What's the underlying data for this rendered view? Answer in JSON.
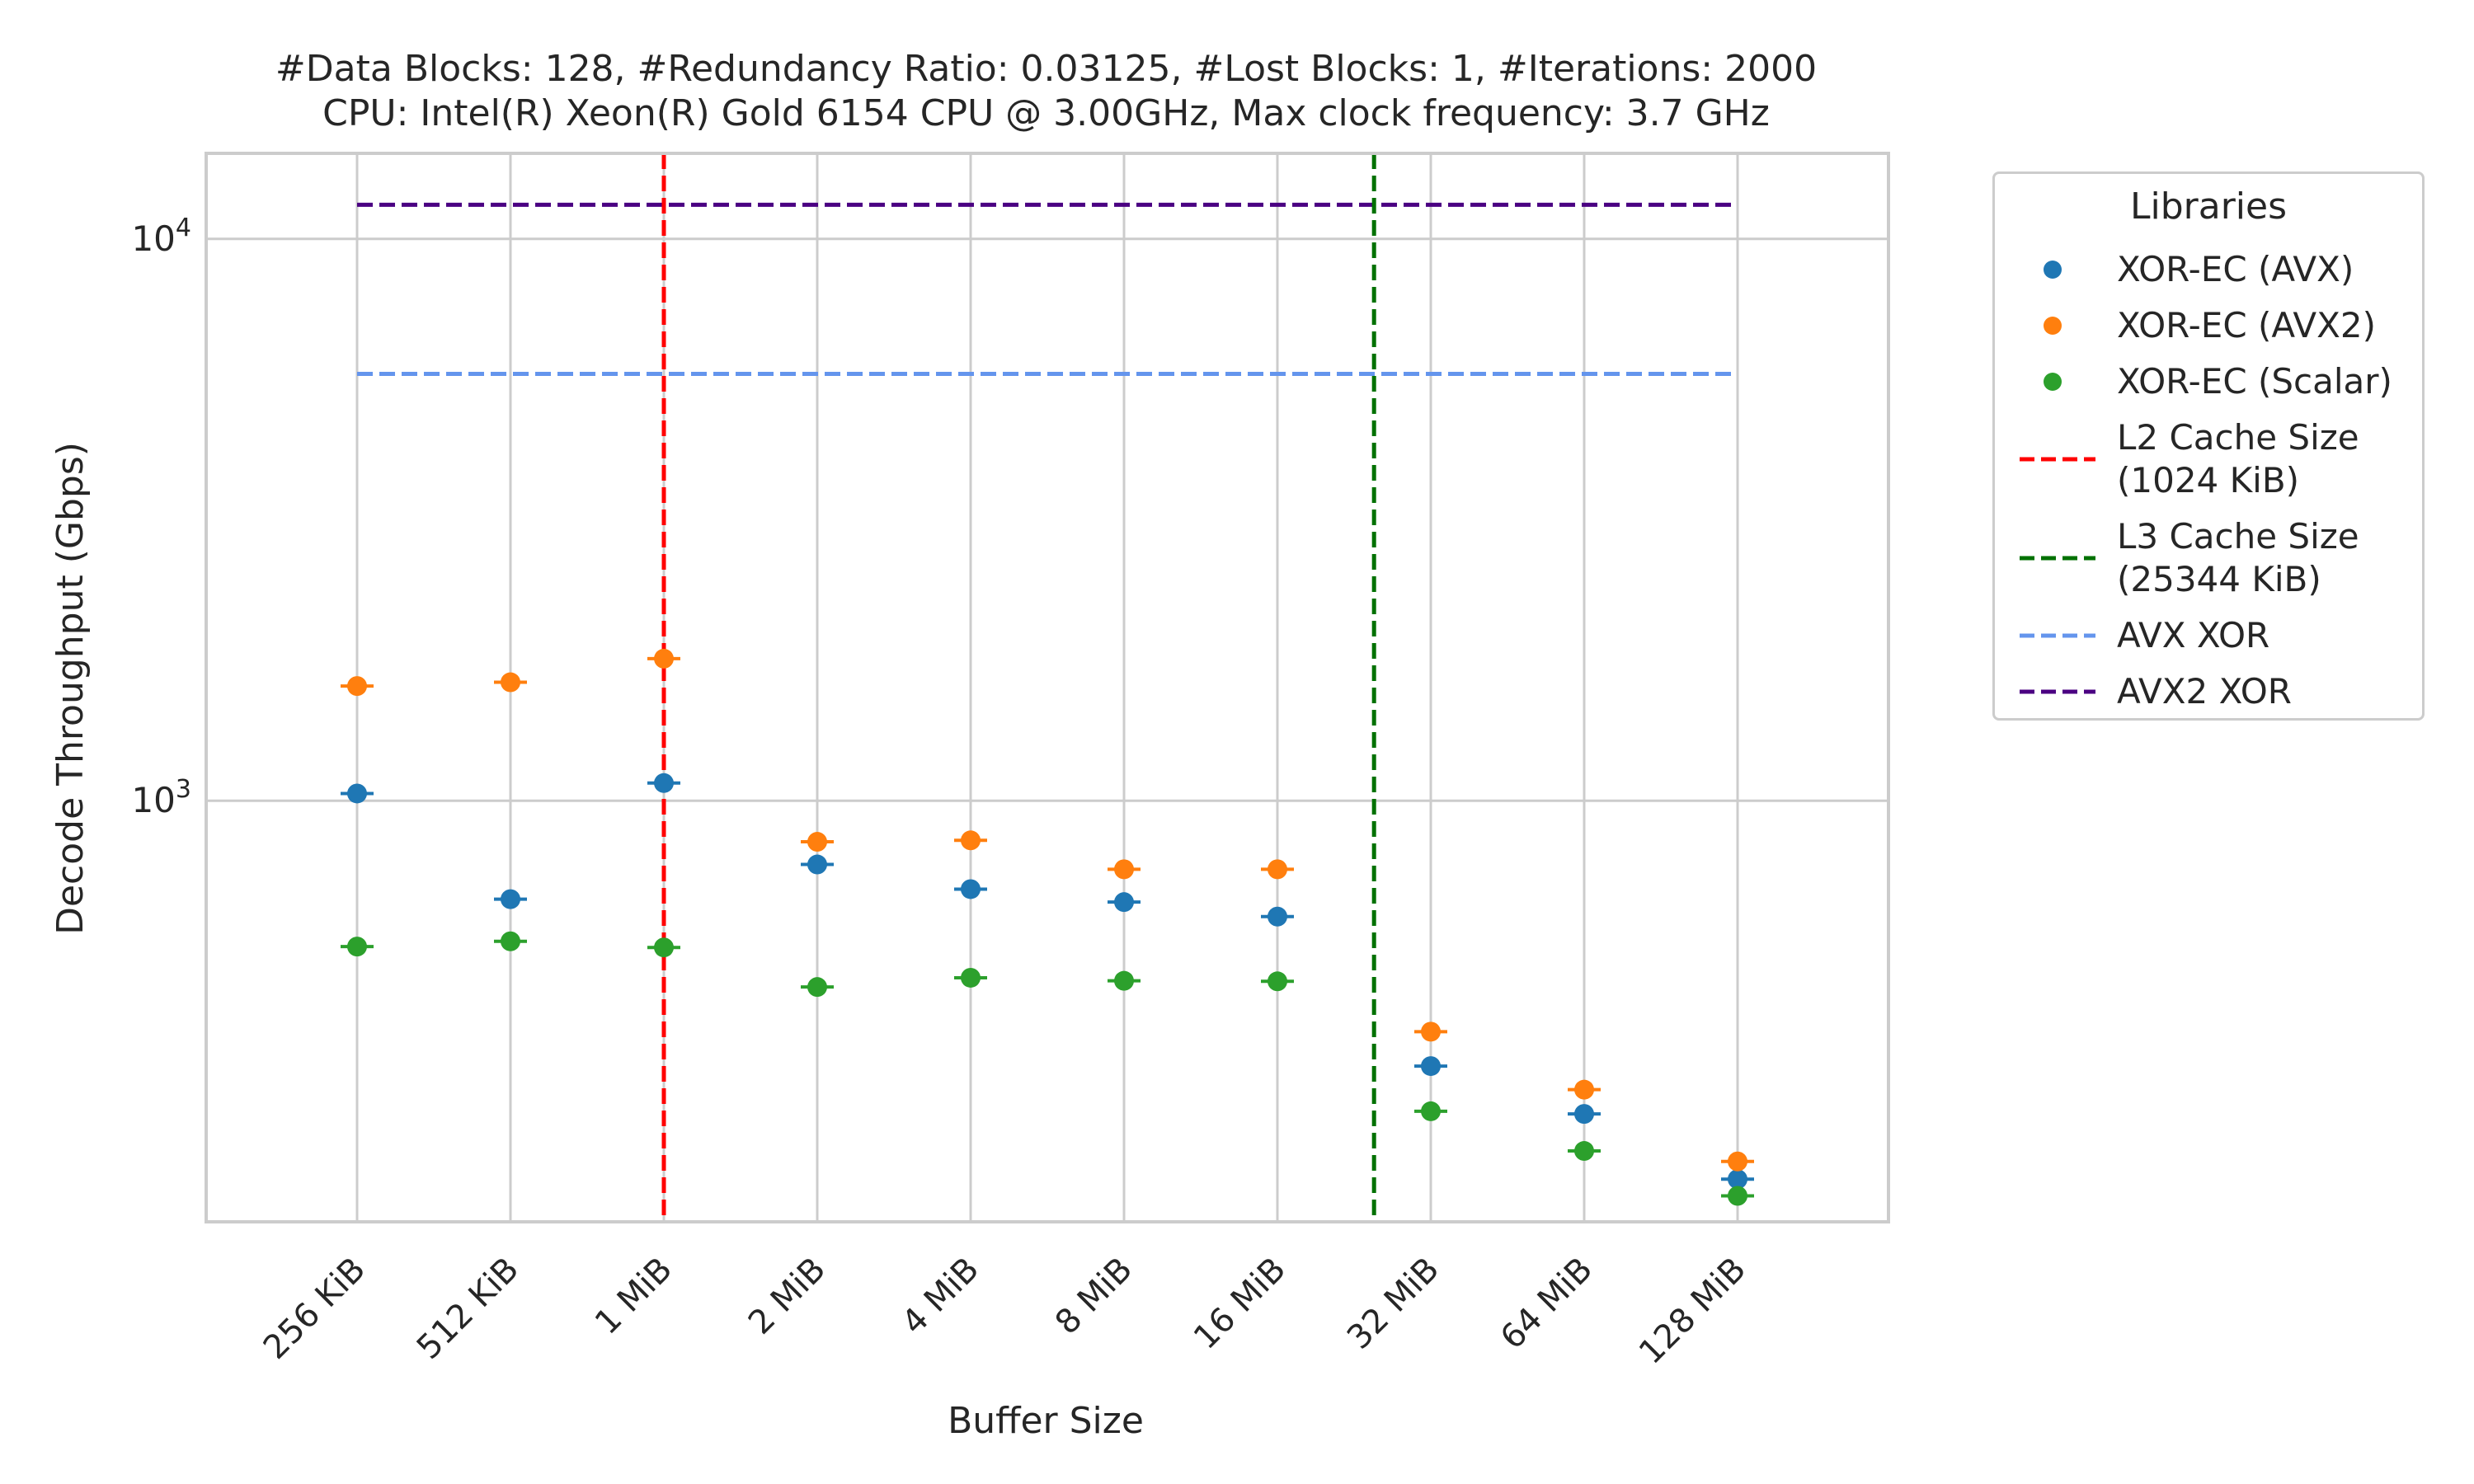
{
  "title_lines": [
    "#Data Blocks: 128, #Redundancy Ratio: 0.03125, #Lost Blocks: 1, #Iterations: 2000",
    "CPU: Intel(R) Xeon(R) Gold 6154 CPU @ 3.00GHz, Max clock frequency: 3.7 GHz"
  ],
  "chart_data": {
    "type": "scatter",
    "xlabel": "Buffer Size",
    "ylabel": "Decode Throughput (Gbps)",
    "categories": [
      "256 KiB",
      "512 KiB",
      "1 MiB",
      "2 MiB",
      "4 MiB",
      "8 MiB",
      "16 MiB",
      "32 MiB",
      "64 MiB",
      "128 MiB"
    ],
    "y_scale": "log",
    "ylim": [
      178,
      14200
    ],
    "y_ticks": [
      {
        "value": 1000,
        "base": "10",
        "exp": "3"
      },
      {
        "value": 10000,
        "base": "10",
        "exp": "4"
      }
    ],
    "grid": true,
    "series": [
      {
        "name": "XOR-EC (AVX)",
        "color": "#1f77b4",
        "values": [
          1030,
          668,
          1075,
          770,
          696,
          660,
          622,
          337,
          277,
          212
        ]
      },
      {
        "name": "XOR-EC (AVX2)",
        "color": "#ff7f0e",
        "values": [
          1600,
          1625,
          1790,
          845,
          850,
          755,
          755,
          388,
          306,
          228
        ]
      },
      {
        "name": "XOR-EC (Scalar)",
        "color": "#2ca02c",
        "values": [
          550,
          562,
          548,
          466,
          484,
          478,
          477,
          280,
          238,
          198
        ]
      }
    ],
    "hlines": [
      {
        "name": "AVX XOR",
        "color": "#6495ed",
        "value": 5750
      },
      {
        "name": "AVX2 XOR",
        "color": "#4b0082",
        "value": 11500
      }
    ],
    "vlines": [
      {
        "name": "L2 Cache Size\n(1024 KiB)",
        "color": "#ff0000",
        "position": 2
      },
      {
        "name": "L3 Cache Size\n(25344 KiB)",
        "color": "#007100",
        "position": 6.63
      }
    ],
    "legend": {
      "title": "Libraries",
      "placement": "outside-right",
      "entries": [
        {
          "label": "XOR-EC (AVX)",
          "kind": "point",
          "color": "#1f77b4"
        },
        {
          "label": "XOR-EC (AVX2)",
          "kind": "point",
          "color": "#ff7f0e"
        },
        {
          "label": "XOR-EC (Scalar)",
          "kind": "point",
          "color": "#2ca02c"
        },
        {
          "label": "L2 Cache Size\n(1024 KiB)",
          "kind": "dash",
          "color": "#ff0000"
        },
        {
          "label": "L3 Cache Size\n(25344 KiB)",
          "kind": "dash",
          "color": "#007100"
        },
        {
          "label": "AVX XOR",
          "kind": "dash",
          "color": "#6495ed"
        },
        {
          "label": "AVX2 XOR",
          "kind": "dash",
          "color": "#4b0082"
        }
      ]
    }
  }
}
